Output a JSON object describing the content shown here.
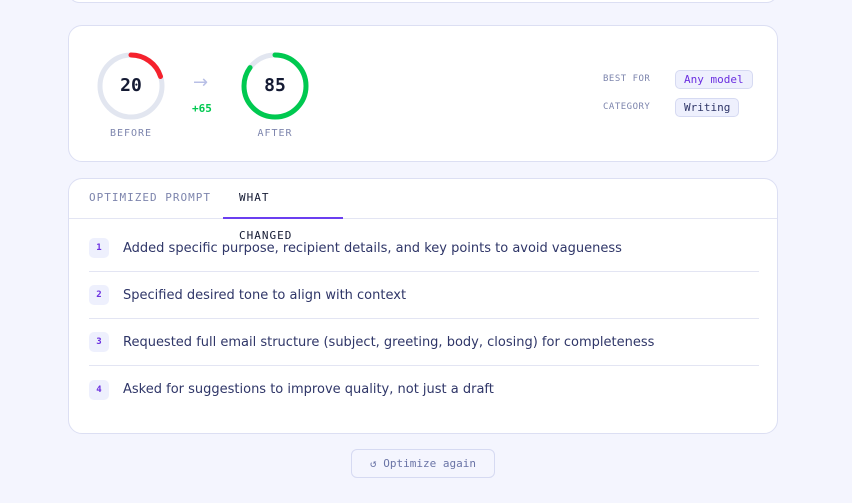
{
  "score": {
    "before": {
      "value": "20",
      "label": "BEFORE",
      "fraction": 0.2,
      "color": "#f5222d"
    },
    "after": {
      "value": "85",
      "label": "AFTER",
      "fraction": 0.85,
      "color": "#00c950"
    },
    "delta": "+65",
    "arrow_icon": "arrow-right-icon"
  },
  "meta": {
    "best_for_label": "BEST FOR",
    "best_for": "Any model",
    "category_label": "CATEGORY",
    "category": "Writing"
  },
  "tabs": [
    {
      "label": "OPTIMIZED PROMPT",
      "active": false
    },
    {
      "label": "WHAT CHANGED",
      "active": true
    }
  ],
  "accent": "#6b3ff0",
  "changes": [
    {
      "n": "1",
      "text": "Added specific purpose, recipient details, and key points to avoid vagueness"
    },
    {
      "n": "2",
      "text": "Specified desired tone to align with context"
    },
    {
      "n": "3",
      "text": "Requested full email structure (subject, greeting, body, closing) for completeness"
    },
    {
      "n": "4",
      "text": "Asked for suggestions to improve quality, not just a draft"
    }
  ],
  "optimize_again": {
    "icon": "↺",
    "label": "Optimize again"
  }
}
